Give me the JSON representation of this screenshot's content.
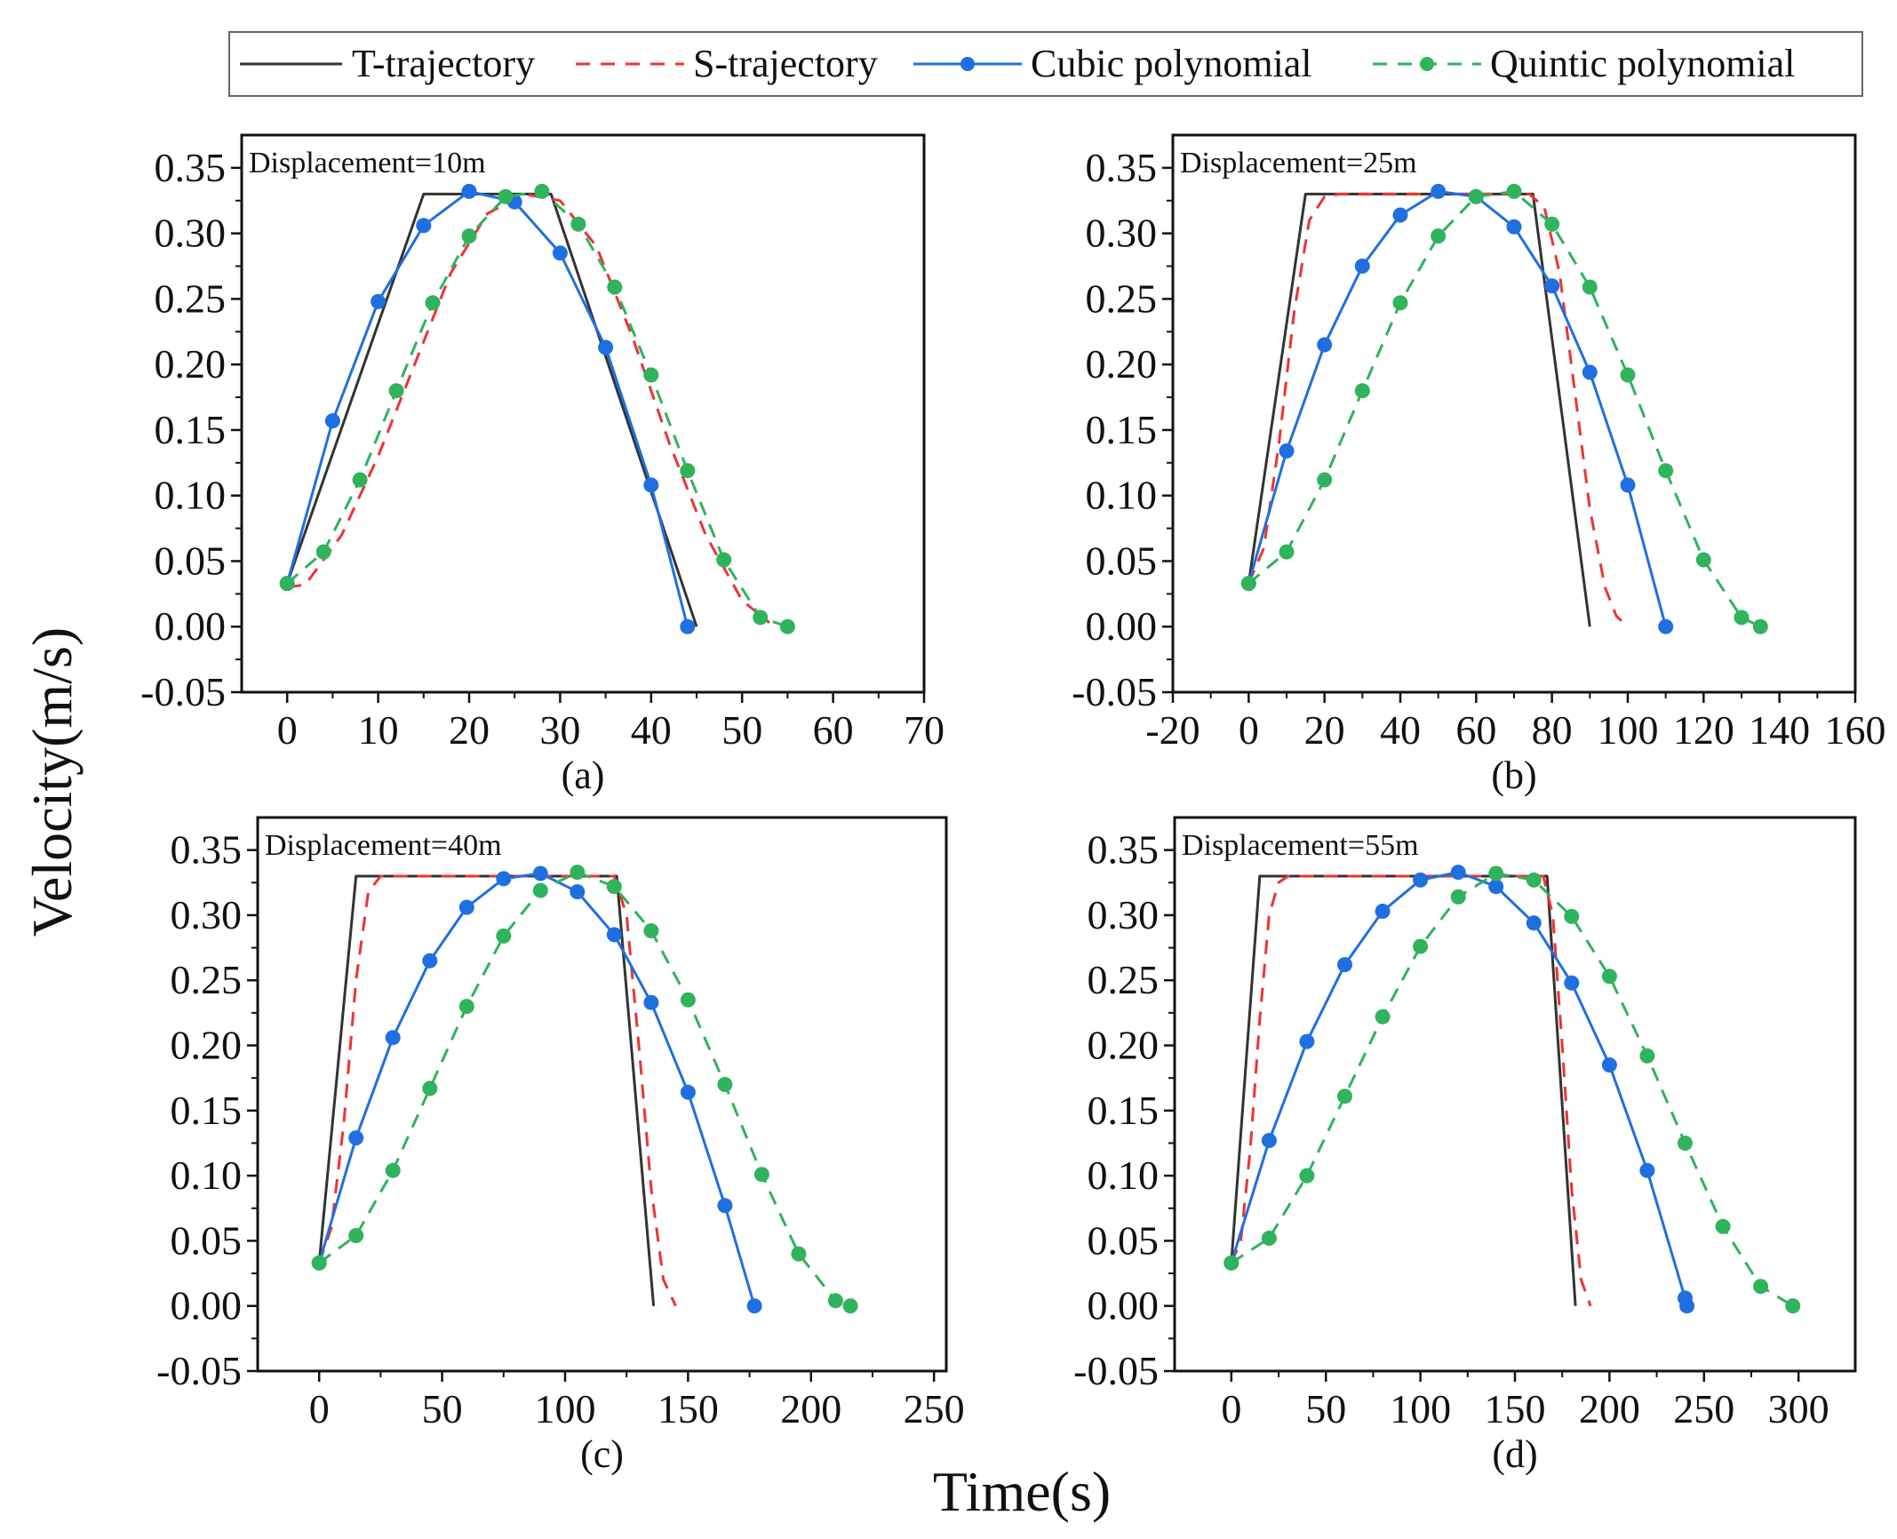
{
  "legend": [
    {
      "name": "T-trajectory",
      "color": "#333333",
      "dash": "solid",
      "marker": "none"
    },
    {
      "name": "S-trajectory",
      "color": "#ee3333",
      "dash": "dashed",
      "marker": "none"
    },
    {
      "name": "Cubic polynomial",
      "color": "#1f6fe0",
      "dash": "solid",
      "marker": "circle"
    },
    {
      "name": "Quintic polynomial",
      "color": "#2fb35c",
      "dash": "dashed",
      "marker": "circle"
    }
  ],
  "labels": {
    "xlabel": "Time(s)",
    "ylabel": "Velocity(m/s)"
  },
  "chart_data": [
    {
      "type": "line",
      "panel": "(a)",
      "annotation": "Displacement=10m",
      "xlim": [
        -5,
        70
      ],
      "ylim": [
        -0.05,
        0.375
      ],
      "xticks": [
        0,
        10,
        20,
        30,
        40,
        50,
        60,
        70
      ],
      "yticks": [
        -0.05,
        0.0,
        0.05,
        0.1,
        0.15,
        0.2,
        0.25,
        0.3,
        0.35
      ],
      "series": [
        {
          "name": "T-trajectory",
          "x": [
            0,
            15,
            29,
            45
          ],
          "y": [
            0.033,
            0.33,
            0.33,
            0.0
          ]
        },
        {
          "name": "S-trajectory",
          "x": [
            0,
            2,
            6,
            10,
            14,
            18,
            22,
            26,
            30,
            34,
            38,
            42,
            46,
            50,
            53
          ],
          "y": [
            0.03,
            0.032,
            0.07,
            0.13,
            0.2,
            0.27,
            0.315,
            0.33,
            0.325,
            0.29,
            0.22,
            0.14,
            0.07,
            0.02,
            0.003
          ]
        },
        {
          "name": "Cubic polynomial",
          "x": [
            0,
            5,
            10,
            15,
            20,
            25,
            30,
            35,
            40,
            44
          ],
          "y": [
            0.033,
            0.157,
            0.248,
            0.306,
            0.332,
            0.324,
            0.285,
            0.213,
            0.108,
            0.0
          ]
        },
        {
          "name": "Quintic polynomial",
          "x": [
            0,
            4,
            8,
            12,
            16,
            20,
            24,
            28,
            32,
            36,
            40,
            44,
            48,
            52,
            55
          ],
          "y": [
            0.033,
            0.057,
            0.112,
            0.18,
            0.247,
            0.298,
            0.328,
            0.332,
            0.307,
            0.259,
            0.192,
            0.119,
            0.051,
            0.007,
            0.0
          ]
        }
      ]
    },
    {
      "type": "line",
      "panel": "(b)",
      "annotation": "Displacement=25m",
      "xlim": [
        -20,
        160
      ],
      "ylim": [
        -0.05,
        0.375
      ],
      "xticks": [
        -20,
        0,
        20,
        40,
        60,
        80,
        100,
        120,
        140,
        160
      ],
      "yticks": [
        -0.05,
        0.0,
        0.05,
        0.1,
        0.15,
        0.2,
        0.25,
        0.3,
        0.35
      ],
      "series": [
        {
          "name": "T-trajectory",
          "x": [
            0,
            15,
            75,
            90
          ],
          "y": [
            0.033,
            0.33,
            0.33,
            0.0
          ]
        },
        {
          "name": "S-trajectory",
          "x": [
            0,
            4,
            8,
            12,
            16,
            20,
            24,
            74,
            78,
            82,
            86,
            90,
            94,
            97,
            100
          ],
          "y": [
            0.033,
            0.06,
            0.14,
            0.24,
            0.31,
            0.328,
            0.33,
            0.33,
            0.32,
            0.27,
            0.18,
            0.09,
            0.03,
            0.008,
            0.0
          ]
        },
        {
          "name": "Cubic polynomial",
          "x": [
            0,
            10,
            20,
            30,
            40,
            50,
            60,
            70,
            80,
            90,
            100,
            110
          ],
          "y": [
            0.033,
            0.134,
            0.215,
            0.275,
            0.314,
            0.332,
            0.328,
            0.305,
            0.26,
            0.194,
            0.108,
            0.0
          ]
        },
        {
          "name": "Quintic polynomial",
          "x": [
            0,
            10,
            20,
            30,
            40,
            50,
            60,
            70,
            80,
            90,
            100,
            110,
            120,
            130,
            135
          ],
          "y": [
            0.033,
            0.057,
            0.112,
            0.18,
            0.247,
            0.298,
            0.328,
            0.332,
            0.307,
            0.259,
            0.192,
            0.119,
            0.051,
            0.007,
            0.0
          ]
        }
      ]
    },
    {
      "type": "line",
      "panel": "(c)",
      "annotation": "Displacement=40m",
      "xlim": [
        -25,
        255
      ],
      "ylim": [
        -0.05,
        0.375
      ],
      "xticks": [
        0,
        50,
        100,
        150,
        200,
        250
      ],
      "yticks": [
        -0.05,
        0.0,
        0.05,
        0.1,
        0.15,
        0.2,
        0.25,
        0.3,
        0.35
      ],
      "series": [
        {
          "name": "T-trajectory",
          "x": [
            0,
            15,
            121,
            136
          ],
          "y": [
            0.033,
            0.33,
            0.33,
            0.0
          ]
        },
        {
          "name": "S-trajectory",
          "x": [
            0,
            5,
            10,
            15,
            20,
            25,
            120,
            125,
            130,
            135,
            140,
            145
          ],
          "y": [
            0.033,
            0.06,
            0.14,
            0.25,
            0.318,
            0.33,
            0.33,
            0.3,
            0.2,
            0.09,
            0.02,
            0.0
          ]
        },
        {
          "name": "Cubic polynomial",
          "x": [
            0,
            15,
            30,
            45,
            60,
            75,
            90,
            105,
            120,
            135,
            150,
            165,
            177
          ],
          "y": [
            0.033,
            0.129,
            0.206,
            0.265,
            0.306,
            0.328,
            0.332,
            0.318,
            0.285,
            0.233,
            0.164,
            0.077,
            0.0
          ]
        },
        {
          "name": "Quintic polynomial",
          "x": [
            0,
            15,
            30,
            45,
            60,
            75,
            90,
            105,
            120,
            135,
            150,
            165,
            180,
            195,
            210,
            216
          ],
          "y": [
            0.033,
            0.054,
            0.104,
            0.167,
            0.23,
            0.284,
            0.319,
            0.333,
            0.322,
            0.288,
            0.235,
            0.17,
            0.101,
            0.04,
            0.004,
            0.0
          ]
        }
      ]
    },
    {
      "type": "line",
      "panel": "(d)",
      "annotation": "Displacement=55m",
      "xlim": [
        -30,
        330
      ],
      "ylim": [
        -0.05,
        0.375
      ],
      "xticks": [
        0,
        50,
        100,
        150,
        200,
        250,
        300
      ],
      "yticks": [
        -0.05,
        0.0,
        0.05,
        0.1,
        0.15,
        0.2,
        0.25,
        0.3,
        0.35
      ],
      "series": [
        {
          "name": "T-trajectory",
          "x": [
            0,
            15,
            167,
            182
          ],
          "y": [
            0.033,
            0.33,
            0.33,
            0.0
          ]
        },
        {
          "name": "S-trajectory",
          "x": [
            0,
            5,
            10,
            15,
            20,
            25,
            30,
            165,
            170,
            175,
            180,
            185,
            190
          ],
          "y": [
            0.033,
            0.05,
            0.12,
            0.22,
            0.3,
            0.325,
            0.33,
            0.33,
            0.3,
            0.2,
            0.09,
            0.02,
            0.0
          ]
        },
        {
          "name": "Cubic polynomial",
          "x": [
            0,
            20,
            40,
            60,
            80,
            100,
            120,
            140,
            160,
            180,
            200,
            220,
            240,
            241
          ],
          "y": [
            0.033,
            0.127,
            0.203,
            0.262,
            0.303,
            0.327,
            0.333,
            0.322,
            0.294,
            0.248,
            0.185,
            0.104,
            0.006,
            0.0
          ]
        },
        {
          "name": "Quintic polynomial",
          "x": [
            0,
            20,
            40,
            60,
            80,
            100,
            120,
            140,
            160,
            180,
            200,
            220,
            240,
            260,
            280,
            297
          ],
          "y": [
            0.033,
            0.052,
            0.1,
            0.161,
            0.222,
            0.276,
            0.314,
            0.332,
            0.327,
            0.299,
            0.253,
            0.192,
            0.125,
            0.061,
            0.015,
            0.0
          ]
        }
      ]
    }
  ]
}
